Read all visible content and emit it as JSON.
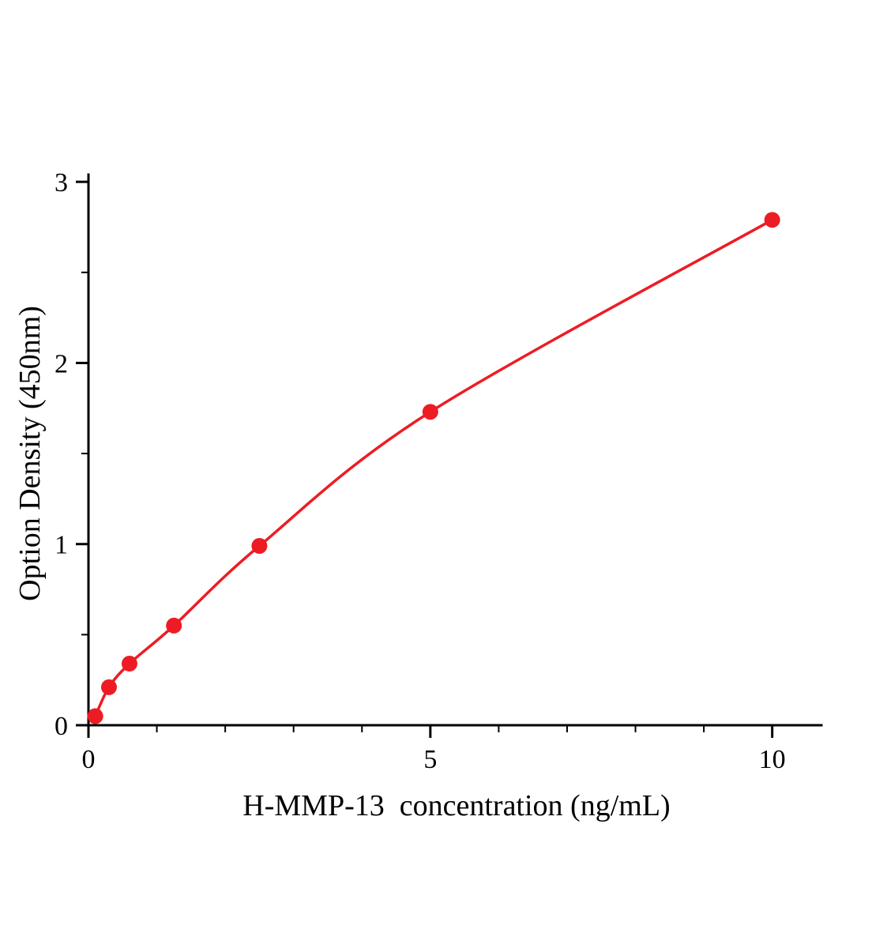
{
  "page": {
    "background": "#ffffff"
  },
  "chart_data": {
    "type": "line+scatter",
    "title": "",
    "xlabel": "H-MMP-13  concentration (ng/mL)",
    "ylabel": "Option Density (450nm)",
    "x": [
      0.1,
      0.3,
      0.6,
      1.25,
      2.5,
      5,
      10
    ],
    "y": [
      0.05,
      0.21,
      0.34,
      0.55,
      0.99,
      1.73,
      2.79
    ],
    "xlim": [
      0,
      10.72
    ],
    "ylim": [
      0,
      3.04
    ],
    "xticks": [
      0,
      5,
      10
    ],
    "xtick_labels": [
      "0",
      "5",
      "10"
    ],
    "yticks": [
      0,
      1,
      2,
      3
    ],
    "ytick_labels": [
      "0",
      "1",
      "2",
      "3"
    ],
    "x_minor_ticks": [
      1,
      2,
      3,
      4,
      6,
      7,
      8,
      9
    ],
    "y_minor_ticks": [
      0.5,
      1.5,
      2.5
    ],
    "grid": false,
    "legend_position": "none",
    "line_color": "#ed1c24",
    "marker_color": "#ed1c24",
    "marker_radius": 10,
    "axis_color": "#000000"
  }
}
